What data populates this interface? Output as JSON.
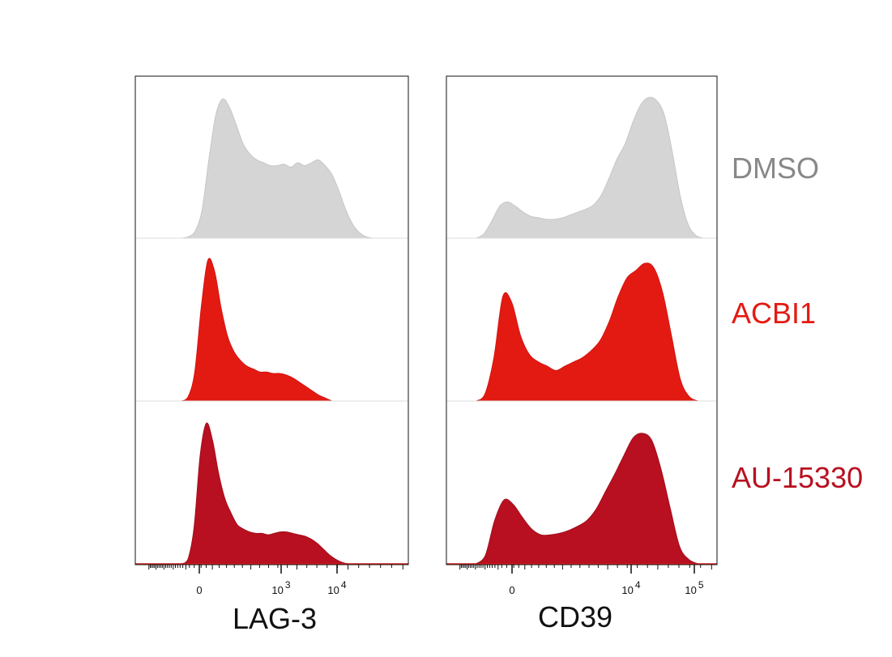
{
  "conditions": [
    "DMSO",
    "ACBI1",
    "AU-15330"
  ],
  "colors": {
    "DMSO": "#d5d5d5",
    "ACBI1": "#e31a12",
    "AU-15330": "#b81020",
    "axis": "#111111",
    "baseline_red": "#d42020"
  },
  "chart_data": [
    {
      "type": "area",
      "xlabel": "LAG-3",
      "x_scale": "biexponential",
      "x_ticks": [
        {
          "label": "0",
          "sup": ""
        },
        {
          "label": "10",
          "sup": "3"
        },
        {
          "label": "10",
          "sup": "4"
        }
      ],
      "y_normalized": true,
      "series": [
        {
          "name": "DMSO",
          "x_fraction_start": 0.17,
          "x_fraction_end": 0.87,
          "values": [
            0,
            0.01,
            0.05,
            0.2,
            0.55,
            0.85,
            0.96,
            0.9,
            0.78,
            0.65,
            0.58,
            0.54,
            0.52,
            0.5,
            0.5,
            0.51,
            0.49,
            0.52,
            0.5,
            0.52,
            0.54,
            0.5,
            0.44,
            0.33,
            0.2,
            0.1,
            0.04,
            0.01,
            0
          ]
        },
        {
          "name": "ACBI1",
          "x_fraction_start": 0.17,
          "x_fraction_end": 0.72,
          "values": [
            0,
            0.03,
            0.2,
            0.65,
            0.97,
            0.9,
            0.65,
            0.45,
            0.34,
            0.28,
            0.24,
            0.22,
            0.2,
            0.2,
            0.19,
            0.19,
            0.18,
            0.16,
            0.13,
            0.1,
            0.07,
            0.04,
            0.02,
            0
          ]
        },
        {
          "name": "AU-15330",
          "x_fraction_start": 0.17,
          "x_fraction_end": 0.78,
          "values": [
            0,
            0.03,
            0.25,
            0.75,
            0.97,
            0.85,
            0.62,
            0.45,
            0.35,
            0.27,
            0.24,
            0.22,
            0.21,
            0.21,
            0.2,
            0.21,
            0.22,
            0.22,
            0.21,
            0.2,
            0.19,
            0.17,
            0.14,
            0.1,
            0.06,
            0.03,
            0.01,
            0
          ]
        }
      ]
    },
    {
      "type": "area",
      "xlabel": "CD39",
      "x_scale": "biexponential",
      "x_ticks": [
        {
          "label": "0",
          "sup": ""
        },
        {
          "label": "10",
          "sup": "4"
        },
        {
          "label": "10",
          "sup": "5"
        }
      ],
      "y_normalized": true,
      "series": [
        {
          "name": "DMSO",
          "x_fraction_start": 0.11,
          "x_fraction_end": 0.95,
          "values": [
            0,
            0.03,
            0.12,
            0.22,
            0.25,
            0.22,
            0.18,
            0.15,
            0.14,
            0.13,
            0.13,
            0.14,
            0.16,
            0.18,
            0.2,
            0.23,
            0.3,
            0.42,
            0.55,
            0.65,
            0.8,
            0.92,
            0.97,
            0.95,
            0.85,
            0.6,
            0.3,
            0.1,
            0.02,
            0
          ]
        },
        {
          "name": "ACBI1",
          "x_fraction_start": 0.11,
          "x_fraction_end": 0.93,
          "values": [
            0,
            0.05,
            0.3,
            0.72,
            0.68,
            0.45,
            0.32,
            0.27,
            0.24,
            0.21,
            0.24,
            0.27,
            0.3,
            0.35,
            0.42,
            0.55,
            0.72,
            0.85,
            0.9,
            0.95,
            0.92,
            0.75,
            0.45,
            0.15,
            0.03,
            0
          ]
        },
        {
          "name": "AU-15330",
          "x_fraction_start": 0.11,
          "x_fraction_end": 0.93,
          "values": [
            0,
            0.06,
            0.3,
            0.44,
            0.41,
            0.32,
            0.24,
            0.2,
            0.2,
            0.21,
            0.23,
            0.26,
            0.3,
            0.38,
            0.5,
            0.62,
            0.75,
            0.87,
            0.9,
            0.85,
            0.65,
            0.38,
            0.12,
            0.03,
            0
          ]
        }
      ]
    }
  ]
}
